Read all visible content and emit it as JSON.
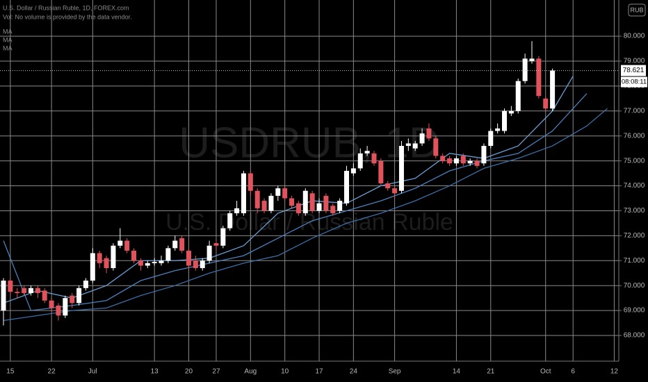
{
  "chart_data": {
    "type": "candlestick",
    "title": "U.S. Dollar / Russian Ruble, 1D, FOREX.com",
    "subtitle": "Vol: No volume is provided by the data vendor.",
    "watermark": "USDRUB, 1D",
    "watermark_subtitle": "U.S. Dollar / Russian Ruble",
    "currency": "RUB",
    "countdown": "08:08:11",
    "categories": [
      null,
      "15",
      null,
      null,
      null,
      null,
      null,
      "22",
      null,
      null,
      null,
      null,
      null,
      "Jul",
      null,
      null,
      null,
      null,
      null,
      null,
      null,
      null,
      "13",
      null,
      null,
      null,
      null,
      "20",
      null,
      null,
      null,
      "27",
      null,
      null,
      null,
      null,
      "Aug",
      null,
      null,
      null,
      null,
      "10",
      null,
      null,
      null,
      null,
      "17",
      null,
      null,
      null,
      null,
      "24",
      null,
      null,
      null,
      null,
      null,
      "Sep",
      null,
      null,
      null,
      null,
      null,
      null,
      null,
      null,
      "14",
      null,
      null,
      null,
      null,
      "21",
      null,
      null,
      null,
      null,
      null,
      null,
      null,
      "Oct",
      null,
      null,
      null,
      "6",
      null,
      null,
      null,
      null,
      null,
      "12"
    ],
    "open": [
      69.0,
      70.2,
      69.75,
      69.9,
      69.7,
      69.9,
      69.8,
      69.4,
      69.2,
      68.8,
      69.6,
      69.3,
      69.9,
      70.2,
      71.3,
      71.1,
      70.7,
      71.6,
      71.8,
      71.4,
      71.0,
      70.8,
      70.9,
      70.9,
      71.0,
      71.5,
      71.9,
      71.4,
      71.0,
      70.7,
      71.0,
      71.7,
      71.6,
      72.3,
      72.9,
      72.9,
      74.5,
      73.8,
      73.4,
      73.0,
      73.6,
      73.9,
      73.5,
      73.3,
      72.9,
      73.7,
      73.0,
      73.6,
      73.2,
      73.0,
      73.3,
      74.5,
      74.7,
      75.3,
      75.3,
      75.0,
      74.1,
      73.9,
      73.8,
      75.6,
      75.5,
      75.7,
      76.3,
      75.9,
      75.2,
      75.1,
      74.9,
      75.2,
      74.9,
      75.0,
      74.9,
      75.6,
      76.2,
      76.2,
      76.9,
      77.0,
      78.2,
      79.0,
      79.1,
      77.5,
      77.1,
      null,
      null,
      null,
      null,
      null,
      null,
      null,
      null,
      null
    ],
    "high": [
      70.3,
      70.3,
      69.9,
      70.0,
      70.0,
      70.0,
      69.9,
      69.5,
      69.3,
      69.6,
      69.7,
      70.0,
      70.3,
      71.5,
      71.4,
      71.2,
      71.7,
      72.3,
      71.9,
      71.5,
      71.1,
      71.0,
      71.1,
      71.2,
      71.6,
      72.0,
      72.0,
      71.5,
      71.2,
      71.1,
      71.8,
      71.8,
      72.4,
      73.0,
      73.4,
      74.6,
      74.6,
      73.9,
      73.5,
      73.7,
      74.0,
      74.0,
      73.6,
      73.4,
      73.9,
      73.8,
      73.5,
      73.7,
      73.3,
      73.5,
      74.8,
      74.9,
      75.5,
      75.6,
      75.4,
      75.1,
      74.2,
      74.0,
      75.8,
      75.9,
      75.8,
      76.3,
      76.5,
      76.0,
      75.3,
      75.2,
      75.2,
      75.3,
      75.1,
      75.1,
      75.7,
      76.3,
      76.5,
      77.1,
      77.2,
      78.3,
      79.3,
      79.8,
      79.2,
      77.6,
      78.7,
      null,
      null,
      null,
      null,
      null,
      null,
      null,
      null,
      null
    ],
    "low": [
      68.4,
      69.6,
      69.5,
      69.6,
      69.6,
      69.5,
      69.3,
      68.9,
      68.6,
      68.7,
      69.1,
      69.2,
      69.8,
      70.1,
      70.7,
      70.5,
      70.6,
      71.5,
      71.3,
      70.9,
      70.6,
      70.7,
      70.8,
      70.8,
      70.9,
      71.4,
      71.3,
      70.6,
      70.6,
      70.6,
      70.9,
      71.4,
      71.5,
      72.2,
      72.8,
      72.8,
      73.6,
      72.9,
      72.9,
      72.9,
      73.4,
      73.4,
      73.1,
      72.8,
      72.8,
      72.9,
      72.9,
      72.9,
      72.8,
      72.9,
      73.2,
      74.4,
      74.6,
      75.2,
      74.8,
      74.0,
      73.8,
      73.5,
      73.7,
      75.4,
      75.4,
      75.6,
      75.8,
      75.1,
      74.9,
      74.8,
      74.8,
      74.8,
      74.8,
      74.7,
      74.8,
      75.5,
      76.1,
      76.1,
      76.8,
      76.9,
      78.1,
      78.9,
      77.5,
      77.0,
      77.0,
      null,
      null,
      null,
      null,
      null,
      null,
      null,
      null,
      null
    ],
    "close": [
      70.2,
      69.75,
      69.7,
      69.7,
      69.9,
      69.7,
      69.4,
      69.1,
      68.8,
      69.5,
      69.3,
      69.9,
      70.2,
      71.3,
      70.9,
      70.7,
      71.6,
      71.8,
      71.4,
      71.0,
      70.8,
      70.9,
      70.95,
      71.0,
      71.5,
      71.8,
      71.4,
      70.8,
      70.7,
      71.0,
      71.6,
      71.6,
      72.3,
      72.9,
      73.1,
      74.5,
      73.8,
      73.1,
      73.0,
      73.6,
      73.9,
      73.5,
      73.2,
      72.9,
      73.8,
      73.0,
      73.3,
      73.0,
      72.9,
      73.4,
      74.6,
      74.7,
      75.3,
      75.4,
      74.9,
      74.1,
      73.9,
      73.7,
      75.6,
      75.7,
      75.7,
      76.1,
      75.9,
      75.2,
      75.0,
      74.9,
      75.1,
      74.9,
      75.0,
      74.8,
      75.6,
      76.2,
      76.3,
      77.0,
      77.0,
      78.2,
      79.1,
      79.1,
      77.6,
      77.1,
      78.621,
      null,
      null,
      null,
      null,
      null,
      null,
      null,
      null,
      null
    ],
    "up_color": "#ffffff",
    "down_color": "#e0535d",
    "series": [
      {
        "name": "MA",
        "color": "#6a9fd4",
        "x": [
          0,
          5,
          10,
          15,
          20,
          25,
          30,
          35,
          40,
          45,
          50,
          55,
          60,
          65,
          70,
          75,
          80,
          83
        ],
        "values": [
          69.3,
          69.8,
          69.5,
          70.0,
          71.0,
          71.0,
          71.1,
          71.6,
          72.9,
          73.4,
          73.3,
          74.0,
          74.3,
          75.3,
          75.1,
          75.6,
          77.0,
          78.4
        ]
      },
      {
        "name": "MA",
        "color": "#4a82bd",
        "x": [
          0,
          4,
          10,
          15,
          20,
          25,
          30,
          35,
          40,
          45,
          50,
          55,
          60,
          65,
          70,
          75,
          80,
          85
        ],
        "values": [
          71.8,
          69.0,
          69.2,
          69.4,
          70.2,
          70.6,
          70.9,
          71.2,
          71.9,
          72.6,
          73.0,
          73.4,
          73.9,
          74.6,
          75.0,
          75.3,
          76.2,
          77.7
        ]
      },
      {
        "name": "MA",
        "color": "#3b6fa6",
        "x": [
          0,
          10,
          15,
          20,
          25,
          30,
          35,
          40,
          45,
          50,
          55,
          60,
          65,
          70,
          75,
          80,
          85,
          88
        ],
        "values": [
          68.6,
          69.0,
          69.1,
          69.6,
          70.0,
          70.5,
          70.9,
          71.2,
          71.9,
          72.5,
          72.9,
          73.4,
          74.0,
          74.7,
          75.1,
          75.6,
          76.4,
          77.1
        ]
      }
    ],
    "ylim": [
      66.97,
      81.45
    ],
    "yticks": [
      {
        "value": 68,
        "label": "68.000"
      },
      {
        "value": 69,
        "label": "69.000"
      },
      {
        "value": 70,
        "label": "70.000"
      },
      {
        "value": 71,
        "label": "71.000"
      },
      {
        "value": 72,
        "label": "72.000"
      },
      {
        "value": 73,
        "label": "73.000"
      },
      {
        "value": 74,
        "label": "74.000"
      },
      {
        "value": 75,
        "label": "75.000"
      },
      {
        "value": 76,
        "label": "76.000"
      },
      {
        "value": 77,
        "label": "77.000"
      },
      {
        "value": 78,
        "label": "78.000"
      },
      {
        "value": 79,
        "label": "79.000"
      },
      {
        "value": 80,
        "label": "80.000"
      }
    ],
    "grid": true
  }
}
